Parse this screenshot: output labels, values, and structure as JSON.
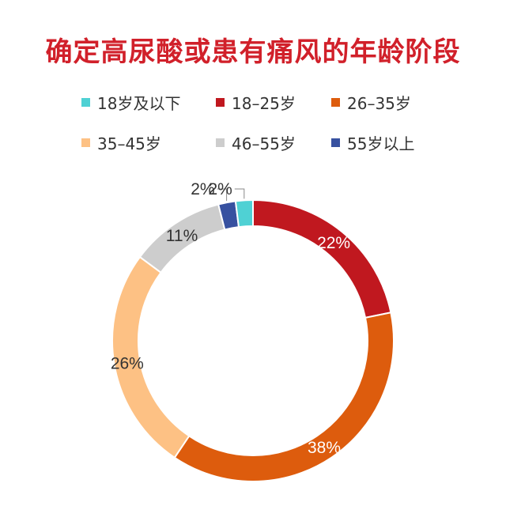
{
  "chart_data": {
    "type": "pie",
    "title": "确定高尿酸或患有痛风的年龄阶段",
    "legend_position": "top",
    "donut": true,
    "slices": [
      {
        "label": "18-25岁",
        "value": 22,
        "value_label": "22%",
        "color": "#c0181f"
      },
      {
        "label": "26-35岁",
        "value": 38,
        "value_label": "38%",
        "color": "#dd5c0d"
      },
      {
        "label": "35-45岁",
        "value": 26,
        "value_label": "26%",
        "color": "#fdc184"
      },
      {
        "label": "46-55岁",
        "value": 11,
        "value_label": "11%",
        "color": "#cdcdcd"
      },
      {
        "label": "55岁以上",
        "value": 2,
        "value_label": "2%",
        "color": "#3751a0"
      },
      {
        "label": "18岁及以下",
        "value": 2,
        "value_label": "2%",
        "color": "#4fd1d4"
      }
    ],
    "legend": [
      {
        "label": "18岁及以下",
        "color": "#4fd1d4"
      },
      {
        "label": "18–25岁",
        "color": "#c0181f"
      },
      {
        "label": "26–35岁",
        "color": "#dd5c0d"
      },
      {
        "label": "35–45岁",
        "color": "#fdc184"
      },
      {
        "label": "46–55岁",
        "color": "#cdcdcd"
      },
      {
        "label": "55岁以上",
        "color": "#3751a0"
      }
    ]
  }
}
